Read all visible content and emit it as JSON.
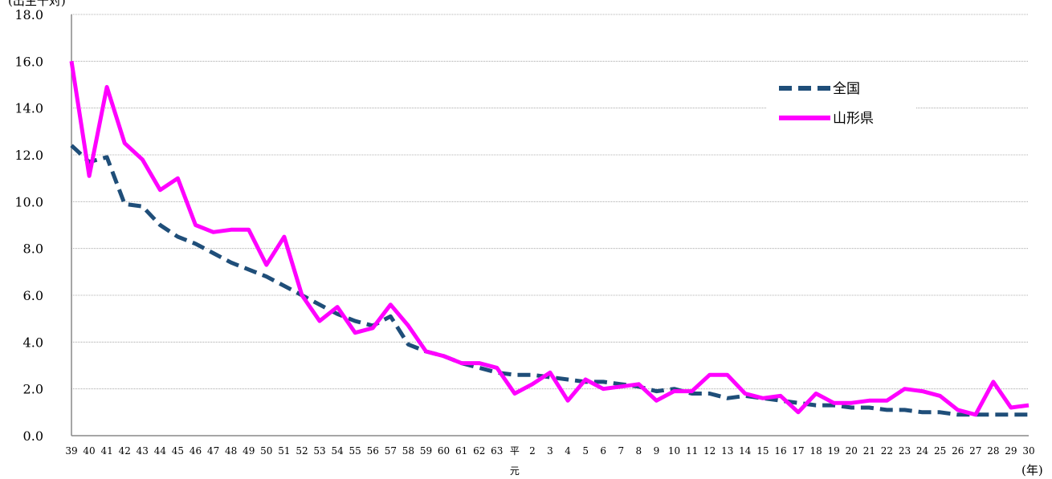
{
  "chart_data": {
    "type": "line",
    "y_unit_label": "(出生千対)",
    "x_unit_label": "(年)",
    "ylim": [
      0,
      18
    ],
    "y_ticks": [
      "0.0",
      "2.0",
      "4.0",
      "6.0",
      "8.0",
      "10.0",
      "12.0",
      "14.0",
      "16.0",
      "18.0"
    ],
    "grid": true,
    "legend_position": "top-right",
    "categories": [
      "39",
      "40",
      "41",
      "42",
      "43",
      "44",
      "45",
      "46",
      "47",
      "48",
      "49",
      "50",
      "51",
      "52",
      "53",
      "54",
      "55",
      "56",
      "57",
      "58",
      "59",
      "60",
      "61",
      "62",
      "63",
      "平元",
      "2",
      "3",
      "4",
      "5",
      "6",
      "7",
      "8",
      "9",
      "10",
      "11",
      "12",
      "13",
      "14",
      "15",
      "16",
      "17",
      "18",
      "19",
      "20",
      "21",
      "22",
      "23",
      "24",
      "25",
      "26",
      "27",
      "28",
      "29",
      "30"
    ],
    "series": [
      {
        "name": "全国",
        "color": "#1f4e79",
        "style": "dashed",
        "values": [
          12.4,
          11.7,
          11.9,
          9.9,
          9.8,
          9.0,
          8.5,
          8.2,
          7.8,
          7.4,
          7.1,
          6.8,
          6.4,
          6.0,
          5.6,
          5.2,
          4.9,
          4.7,
          5.1,
          3.9,
          3.6,
          3.4,
          3.1,
          2.9,
          2.7,
          2.6,
          2.6,
          2.5,
          2.4,
          2.3,
          2.3,
          2.2,
          2.1,
          1.9,
          2.0,
          1.8,
          1.8,
          1.6,
          1.7,
          1.6,
          1.5,
          1.4,
          1.3,
          1.3,
          1.2,
          1.2,
          1.1,
          1.1,
          1.0,
          1.0,
          0.9,
          0.9,
          0.9,
          0.9,
          0.9
        ]
      },
      {
        "name": "山形県",
        "color": "#ff00ff",
        "style": "solid",
        "values": [
          16.0,
          11.1,
          14.9,
          12.5,
          11.8,
          10.5,
          11.0,
          9.0,
          8.7,
          8.8,
          8.8,
          7.3,
          8.5,
          6.0,
          4.9,
          5.5,
          4.4,
          4.6,
          5.6,
          4.7,
          3.6,
          3.4,
          3.1,
          3.1,
          2.9,
          1.8,
          2.2,
          2.7,
          1.5,
          2.4,
          2.0,
          2.1,
          2.2,
          1.5,
          1.9,
          1.9,
          2.6,
          2.6,
          1.8,
          1.6,
          1.7,
          1.0,
          1.8,
          1.4,
          1.4,
          1.5,
          1.5,
          2.0,
          1.9,
          1.7,
          1.1,
          0.9,
          2.3,
          1.2,
          1.3
        ]
      }
    ]
  }
}
